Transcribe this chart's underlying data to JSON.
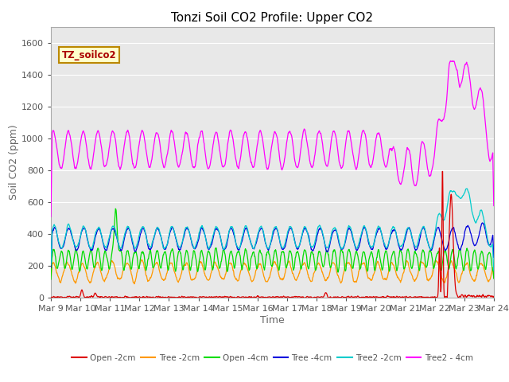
{
  "title": "Tonzi Soil CO2 Profile: Upper CO2",
  "xlabel": "Time",
  "ylabel": "Soil CO2 (ppm)",
  "watermark": "TZ_soilco2",
  "ylim": [
    0,
    1700
  ],
  "yticks": [
    0,
    200,
    400,
    600,
    800,
    1000,
    1200,
    1400,
    1600
  ],
  "xtick_labels": [
    "Mar 9",
    "Mar 10",
    "Mar 11",
    "Mar 12",
    "Mar 13",
    "Mar 14",
    "Mar 15",
    "Mar 16",
    "Mar 17",
    "Mar 18",
    "Mar 19",
    "Mar 20",
    "Mar 21",
    "Mar 22",
    "Mar 23",
    "Mar 24"
  ],
  "series_colors": {
    "Open_2cm": "#dd0000",
    "Tree_2cm": "#ff9900",
    "Open_4cm": "#00dd00",
    "Tree_4cm": "#0000dd",
    "Tree2_2cm": "#00cccc",
    "Tree2_4cm": "#ff00ff"
  },
  "legend_labels": [
    "Open -2cm",
    "Tree -2cm",
    "Open -4cm",
    "Tree -4cm",
    "Tree2 -2cm",
    "Tree2 - 4cm"
  ],
  "background_color": "#e8e8e8",
  "title_fontsize": 11,
  "label_fontsize": 9,
  "tick_fontsize": 8
}
